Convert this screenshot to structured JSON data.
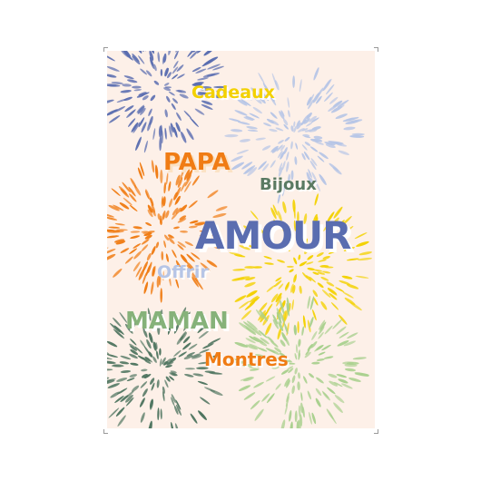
{
  "card": {
    "background": "#fdf0e8",
    "words": {
      "cadeaux": "Cadeaux",
      "papa": "PAPA",
      "bijoux": "Bijoux",
      "amour": "AMOUR",
      "offrir": "Offrir",
      "maman": "MAMAN",
      "montres": "Montres"
    },
    "bursts": [
      {
        "name": "firework-blue",
        "color": "#5a6db0"
      },
      {
        "name": "firework-light-blue",
        "color": "#b6c5e6"
      },
      {
        "name": "firework-orange",
        "color": "#f07c14"
      },
      {
        "name": "firework-yellow",
        "color": "#f3d100"
      },
      {
        "name": "firework-dark-green",
        "color": "#4f7560"
      },
      {
        "name": "firework-light-green",
        "color": "#a9d08e"
      }
    ]
  }
}
